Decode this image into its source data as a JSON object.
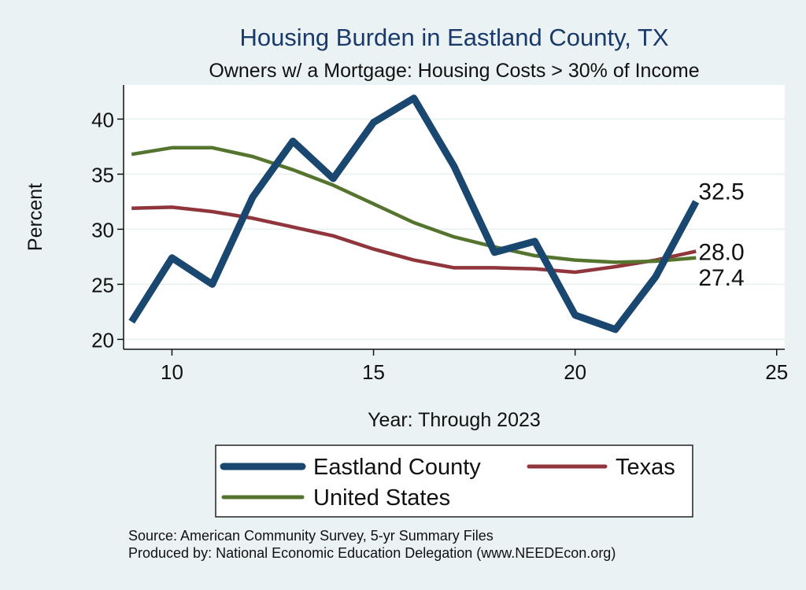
{
  "chart_data": {
    "type": "line",
    "title": "Housing Burden in Eastland County, TX",
    "subtitle": "Owners w/ a Mortgage: Housing Costs > 30% of Income",
    "xlabel": "Year: Through 2023",
    "ylabel": "Percent",
    "xlim": [
      8.8,
      25.2
    ],
    "ylim": [
      19.1,
      43.1
    ],
    "x_ticks": [
      10,
      15,
      20,
      25
    ],
    "y_ticks": [
      20,
      25,
      30,
      35,
      40
    ],
    "grid": true,
    "legend_position": "bottom",
    "x": [
      9,
      10,
      11,
      12,
      13,
      14,
      15,
      16,
      17,
      18,
      19,
      20,
      21,
      22,
      23
    ],
    "series": [
      {
        "name": "Eastland County",
        "color": "#1a476f",
        "values": [
          21.6,
          27.4,
          25.0,
          32.9,
          38.0,
          34.6,
          39.7,
          41.9,
          35.7,
          27.9,
          28.9,
          22.2,
          20.9,
          25.7,
          32.5
        ],
        "end_label": "32.5"
      },
      {
        "name": "Texas",
        "color": "#90353b",
        "values": [
          31.9,
          32.0,
          31.6,
          31.0,
          30.2,
          29.4,
          28.2,
          27.2,
          26.5,
          26.5,
          26.4,
          26.1,
          26.6,
          27.2,
          28.0
        ],
        "end_label": "28.0"
      },
      {
        "name": "United States",
        "color": "#55752f",
        "values": [
          36.8,
          37.4,
          37.4,
          36.6,
          35.4,
          34.0,
          32.3,
          30.6,
          29.3,
          28.4,
          27.6,
          27.2,
          27.0,
          27.1,
          27.4
        ],
        "end_label": "27.4"
      }
    ],
    "notes": [
      "Source: American Community Survey, 5-yr Summary Files",
      "Produced by: National Economic Education Delegation (www.NEEDEcon.org)"
    ]
  }
}
